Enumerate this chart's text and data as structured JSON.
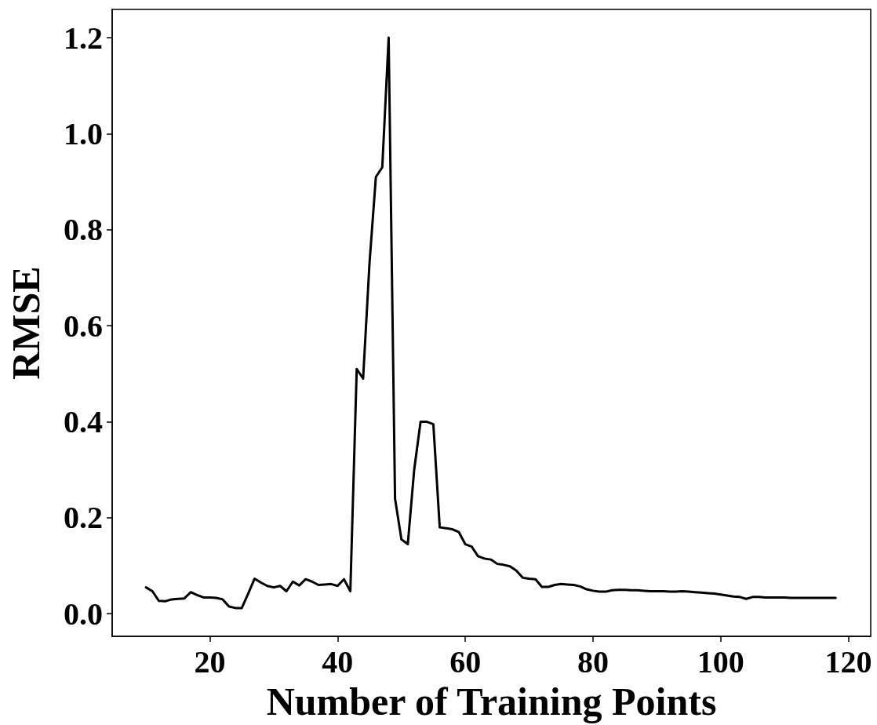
{
  "chart_data": {
    "type": "line",
    "xlabel": "Number of Training Points",
    "ylabel": "RMSE",
    "x": [
      10,
      11,
      12,
      13,
      14,
      15,
      16,
      17,
      18,
      19,
      20,
      21,
      22,
      23,
      24,
      25,
      26,
      27,
      28,
      29,
      30,
      31,
      32,
      33,
      34,
      35,
      36,
      37,
      38,
      39,
      40,
      41,
      42,
      43,
      44,
      45,
      46,
      47,
      48,
      49,
      50,
      51,
      52,
      53,
      54,
      55,
      56,
      57,
      58,
      59,
      60,
      61,
      62,
      63,
      64,
      65,
      66,
      67,
      68,
      69,
      70,
      71,
      72,
      73,
      74,
      75,
      76,
      77,
      78,
      79,
      80,
      81,
      82,
      83,
      84,
      85,
      86,
      87,
      88,
      89,
      90,
      91,
      92,
      93,
      94,
      95,
      96,
      97,
      98,
      99,
      100,
      101,
      102,
      103,
      104,
      105,
      106,
      107,
      108,
      109,
      110,
      111,
      112,
      113,
      114,
      115,
      116,
      117,
      118
    ],
    "series": [
      {
        "color": "#000000",
        "values": [
          0.055,
          0.047,
          0.027,
          0.026,
          0.03,
          0.031,
          0.032,
          0.045,
          0.039,
          0.034,
          0.034,
          0.033,
          0.03,
          0.015,
          0.012,
          0.012,
          0.042,
          0.073,
          0.065,
          0.058,
          0.055,
          0.058,
          0.047,
          0.067,
          0.059,
          0.072,
          0.067,
          0.06,
          0.061,
          0.062,
          0.058,
          0.072,
          0.047,
          0.51,
          0.49,
          0.73,
          0.91,
          0.93,
          1.2,
          0.24,
          0.155,
          0.145,
          0.3,
          0.4,
          0.4,
          0.395,
          0.18,
          0.178,
          0.176,
          0.17,
          0.145,
          0.14,
          0.12,
          0.115,
          0.113,
          0.104,
          0.102,
          0.099,
          0.09,
          0.075,
          0.073,
          0.072,
          0.056,
          0.056,
          0.06,
          0.062,
          0.061,
          0.06,
          0.057,
          0.051,
          0.048,
          0.046,
          0.046,
          0.049,
          0.05,
          0.05,
          0.049,
          0.049,
          0.048,
          0.047,
          0.047,
          0.047,
          0.046,
          0.046,
          0.047,
          0.046,
          0.045,
          0.044,
          0.043,
          0.042,
          0.04,
          0.038,
          0.036,
          0.035,
          0.031,
          0.035,
          0.035,
          0.034,
          0.034,
          0.034,
          0.034,
          0.033,
          0.033,
          0.033,
          0.033,
          0.033,
          0.033,
          0.033,
          0.033
        ]
      }
    ],
    "xlim": [
      4.7,
      123.5
    ],
    "ylim": [
      -0.047,
      1.259
    ],
    "xticks": [
      20,
      40,
      60,
      80,
      100,
      120
    ],
    "yticks": [
      {
        "value": 0,
        "label": "0.0"
      },
      {
        "value": 0.2,
        "label": "0.2"
      },
      {
        "value": 0.4,
        "label": "0.4"
      },
      {
        "value": 0.6,
        "label": "0.6"
      },
      {
        "value": 0.8,
        "label": "0.8"
      },
      {
        "value": 1.0,
        "label": "1.0"
      },
      {
        "value": 1.2,
        "label": "1.2"
      }
    ],
    "grid": false,
    "marker": "none",
    "line_style": "solid"
  }
}
